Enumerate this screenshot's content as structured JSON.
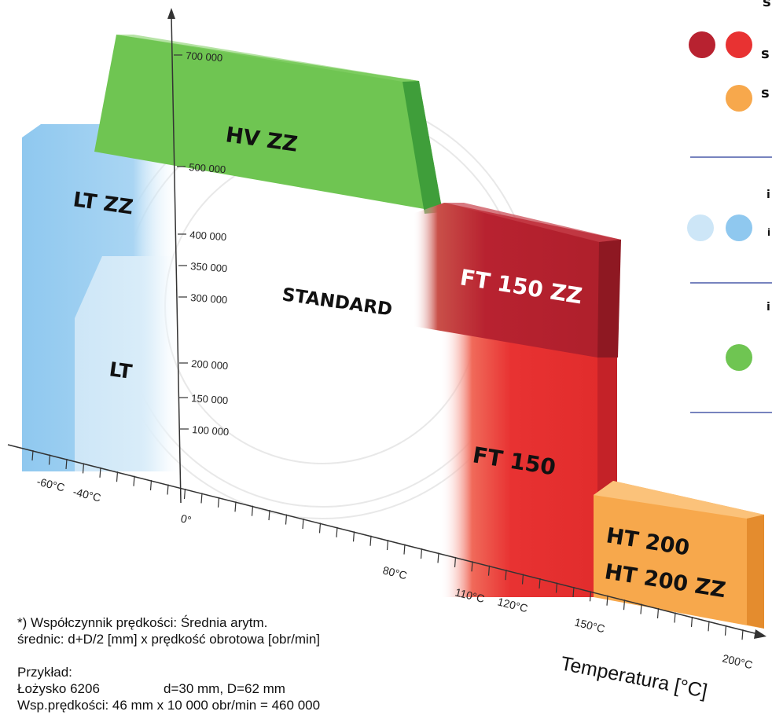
{
  "y_axis_ticks": [
    "700 000",
    "500 000",
    "400 000",
    "350 000",
    "300 000",
    "200 000",
    "150 000",
    "100 000"
  ],
  "x_axis_ticks": [
    "-60°C",
    "-40°C",
    "0°",
    "80°C",
    "110°C",
    "120°C",
    "150°C",
    "200°C"
  ],
  "x_axis_label": "Temperatura [°C]",
  "regions": {
    "hv_zz": "HV ZZ",
    "lt_zz": "LT ZZ",
    "lt": "LT",
    "standard": "STANDARD",
    "ft150zz": "FT 150 ZZ",
    "ft150": "FT 150",
    "ht200": "HT 200",
    "ht200zz": "HT 200 ZZ"
  },
  "colors": {
    "green": "#6fc552",
    "green_dark": "#3f9e3a",
    "blue": "#8fc8ef",
    "blue_light": "#cde6f7",
    "red_dark": "#b82230",
    "red": "#e83232",
    "orange": "#f7a84c",
    "divider": "#4a5aa8"
  },
  "legend": {
    "dots": [
      "#b82230",
      "#e83232",
      "#f7a84c",
      "#cde6f7",
      "#8fc8ef",
      "#6fc552"
    ],
    "row_letters": [
      "s",
      "s",
      "s",
      "i",
      "i",
      "i"
    ]
  },
  "footnote": {
    "line1": "*) Współczynnik prędkości: Średnia arytm.",
    "line2": "średnic: d+D/2 [mm] x prędkość obrotowa [obr/min]",
    "example_label": "Przykład:",
    "bearing": "Łożysko 6206",
    "dims": "d=30 mm, D=62 mm",
    "line5": "Wsp.prędkości: 46 mm x 10 000 obr/min = 460 000"
  }
}
